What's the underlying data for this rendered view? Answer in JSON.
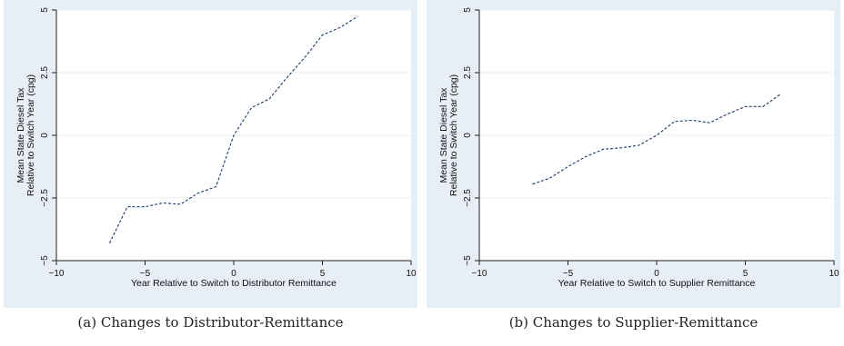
{
  "chart_data": [
    {
      "type": "line",
      "title": "",
      "xlabel": "Year Relative to Switch to Distributor Remittance",
      "ylabel_lines": [
        "Mean State Diesel Tax",
        "Relative to Switch Year (cpg)"
      ],
      "xlim": [
        -10,
        10
      ],
      "ylim": [
        -5,
        5
      ],
      "xticks": [
        -10,
        -5,
        0,
        5,
        10
      ],
      "yticks": [
        -5,
        -2.5,
        0,
        2.5,
        5
      ],
      "xtick_labels": [
        "−10",
        "−5",
        "0",
        "5",
        "10"
      ],
      "ytick_labels": [
        "−5",
        "−2.5",
        "0",
        "2.5",
        "5"
      ],
      "grid": true,
      "series": [
        {
          "x": [
            -7,
            -6,
            -5,
            -4,
            -3,
            -2,
            -1,
            0,
            1,
            2,
            3,
            4,
            5,
            6,
            7
          ],
          "y": [
            -4.3,
            -2.85,
            -2.85,
            -2.7,
            -2.75,
            -2.3,
            -2.05,
            0.0,
            1.1,
            1.45,
            2.3,
            3.1,
            4.0,
            4.3,
            4.75
          ]
        }
      ]
    },
    {
      "type": "line",
      "title": "",
      "xlabel": "Year Relative to Switch to Supplier Remittance",
      "ylabel_lines": [
        "Mean State Diesel Tax",
        "Relative to Switch Year (cpg)"
      ],
      "xlim": [
        -10,
        10
      ],
      "ylim": [
        -5,
        5
      ],
      "xticks": [
        -10,
        -5,
        0,
        5,
        10
      ],
      "yticks": [
        -5,
        -2.5,
        0,
        2.5,
        5
      ],
      "xtick_labels": [
        "−10",
        "−5",
        "0",
        "5",
        "10"
      ],
      "ytick_labels": [
        "−5",
        "−2.5",
        "0",
        "2.5",
        "5"
      ],
      "grid": true,
      "series": [
        {
          "x": [
            -7,
            -6,
            -5,
            -4,
            -3,
            -2,
            -1,
            0,
            1,
            2,
            3,
            4,
            5,
            6,
            7
          ],
          "y": [
            -1.95,
            -1.7,
            -1.25,
            -0.85,
            -0.55,
            -0.5,
            -0.4,
            0.0,
            0.55,
            0.6,
            0.5,
            0.85,
            1.15,
            1.15,
            1.65
          ]
        }
      ]
    }
  ],
  "captions": {
    "a": "(a) Changes to Distributor-Remittance",
    "b": "(b) Changes to Supplier-Remittance"
  },
  "colors": {
    "panel_bg": "#e7eef5",
    "plot_bg": "#ffffff",
    "grid": "#e9eef3",
    "line": "#1a3a66"
  }
}
